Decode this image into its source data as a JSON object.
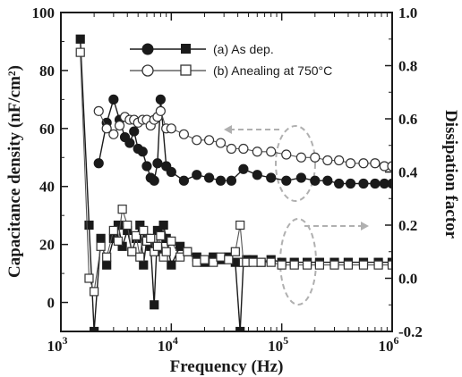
{
  "chart_data": {
    "type": "line",
    "x_scale": "log",
    "xlim": [
      1000,
      1000000
    ],
    "xticks": [
      {
        "value": 1000,
        "base": "10",
        "exp": "3"
      },
      {
        "value": 10000,
        "base": "10",
        "exp": "4"
      },
      {
        "value": 100000,
        "base": "10",
        "exp": "5"
      },
      {
        "value": 1000000,
        "base": "10",
        "exp": "6"
      }
    ],
    "xlabel": "Frequency  (Hz)",
    "y_left": {
      "label": "Capacitance density  (nF/cm²)",
      "lim": [
        -10,
        100
      ],
      "ticks": [
        "0",
        "20",
        "40",
        "60",
        "80",
        "100"
      ]
    },
    "y_right": {
      "label": "Dissipation factor",
      "lim": [
        -0.2,
        1.0
      ],
      "ticks": [
        "-0.2",
        "0.0",
        "0.2",
        "0.4",
        "0.6",
        "0.8",
        "1.0"
      ]
    },
    "legend": {
      "placement": "top-center",
      "entries": [
        "(a) As dep.",
        "(b) Anealing at 750°C"
      ]
    },
    "series": [
      {
        "name": "(a) As dep.",
        "axis": "left",
        "quantity": "capacitance",
        "marker": "filled-circle",
        "x": [
          2200,
          2600,
          3000,
          3400,
          3800,
          4200,
          4600,
          5000,
          5500,
          6000,
          6500,
          7000,
          7500,
          8000,
          9000,
          10000,
          13000,
          17000,
          22000,
          28000,
          35000,
          45000,
          60000,
          80000,
          110000,
          150000,
          200000,
          260000,
          330000,
          420000,
          550000,
          700000,
          850000,
          1000000
        ],
        "y": [
          48,
          62,
          70,
          63,
          57,
          55,
          59,
          53,
          52,
          47,
          43,
          42,
          48,
          70,
          47,
          45,
          42,
          44,
          43,
          42,
          42,
          46,
          44,
          43,
          42,
          43,
          42,
          42,
          41,
          41,
          41,
          41,
          41,
          41
        ]
      },
      {
        "name": "(b) Anealing at 750°C",
        "axis": "left",
        "quantity": "capacitance",
        "marker": "open-circle",
        "x": [
          2200,
          2600,
          3000,
          3400,
          3800,
          4200,
          4600,
          5000,
          5500,
          6000,
          6500,
          7000,
          7500,
          8000,
          9000,
          10000,
          13000,
          17000,
          22000,
          28000,
          35000,
          45000,
          60000,
          80000,
          110000,
          150000,
          200000,
          260000,
          330000,
          420000,
          550000,
          700000,
          850000,
          1000000
        ],
        "y": [
          66,
          60,
          58,
          61,
          64,
          63,
          63,
          62,
          63,
          63,
          61,
          63,
          64,
          66,
          60,
          60,
          58,
          56,
          56,
          55,
          53,
          53,
          52,
          52,
          51,
          50,
          50,
          49,
          49,
          48,
          48,
          48,
          47,
          47
        ]
      },
      {
        "name": "(a) As dep.",
        "axis": "right",
        "quantity": "dissipation",
        "marker": "filled-square",
        "x": [
          1500,
          1800,
          2000,
          2300,
          2600,
          3000,
          3300,
          3600,
          4000,
          4400,
          4800,
          5200,
          5600,
          6000,
          6500,
          7000,
          7500,
          8000,
          8500,
          9000,
          10000,
          12000,
          14000,
          17000,
          20000,
          24000,
          28000,
          33000,
          38000,
          42000,
          45000,
          48000,
          55000,
          65000,
          80000,
          100000,
          130000,
          170000,
          220000,
          300000,
          400000,
          550000,
          750000,
          1000000
        ],
        "y": [
          0.9,
          0.2,
          -0.2,
          0.15,
          0.05,
          0.15,
          0.2,
          0.12,
          0.18,
          0.1,
          0.15,
          0.2,
          0.05,
          0.15,
          0.12,
          -0.1,
          0.18,
          0.1,
          0.2,
          0.15,
          0.05,
          0.12,
          0.1,
          0.08,
          0.06,
          0.08,
          0.07,
          0.08,
          0.06,
          -0.2,
          0.06,
          0.07,
          0.07,
          0.06,
          0.07,
          0.06,
          0.06,
          0.06,
          0.06,
          0.06,
          0.06,
          0.06,
          0.06,
          0.06
        ]
      },
      {
        "name": "(b) Anealing at 750°C",
        "axis": "right",
        "quantity": "dissipation",
        "marker": "open-square",
        "x": [
          1500,
          1800,
          2000,
          2300,
          2600,
          3000,
          3300,
          3600,
          4000,
          4400,
          4800,
          5200,
          5600,
          6000,
          6500,
          7000,
          7500,
          8000,
          8500,
          9000,
          10000,
          12000,
          14000,
          17000,
          20000,
          24000,
          28000,
          33000,
          38000,
          42000,
          45000,
          48000,
          55000,
          65000,
          80000,
          100000,
          130000,
          170000,
          220000,
          300000,
          400000,
          550000,
          750000,
          1000000
        ],
        "y": [
          0.85,
          0.0,
          -0.05,
          0.12,
          0.08,
          0.18,
          0.14,
          0.26,
          0.2,
          0.1,
          0.16,
          0.08,
          0.18,
          0.14,
          0.15,
          0.1,
          0.12,
          0.16,
          0.08,
          0.1,
          0.14,
          0.08,
          0.1,
          0.06,
          0.07,
          0.06,
          0.08,
          0.07,
          0.1,
          0.2,
          0.06,
          0.06,
          0.06,
          0.06,
          0.06,
          0.05,
          0.05,
          0.05,
          0.05,
          0.05,
          0.05,
          0.05,
          0.05,
          0.05
        ]
      }
    ]
  }
}
